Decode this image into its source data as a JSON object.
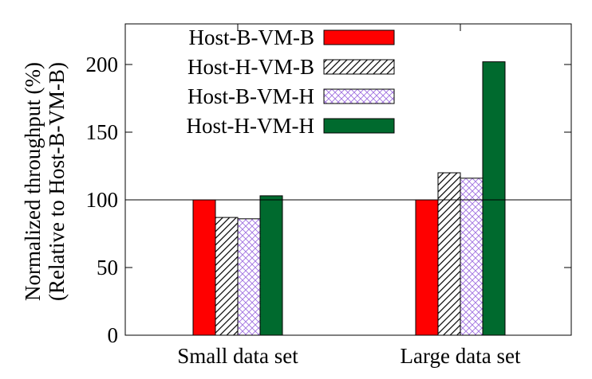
{
  "chart_data": {
    "type": "bar",
    "ylabel_lines": [
      "Normalized throughput (%)",
      "(Relative to Host-B-VM-B)"
    ],
    "categories": [
      "Small data set",
      "Large data set"
    ],
    "ylim": [
      0,
      230
    ],
    "yticks": [
      0,
      50,
      100,
      150,
      200
    ],
    "reference_line": 100,
    "grid": false,
    "legend_position": "top-left",
    "series": [
      {
        "name": "Host-B-VM-B",
        "values": [
          100,
          100
        ],
        "color": "#ff0000",
        "pattern": "solid"
      },
      {
        "name": "Host-H-VM-B",
        "values": [
          87,
          120
        ],
        "color": "#000000",
        "pattern": "diagonal-hatch"
      },
      {
        "name": "Host-B-VM-H",
        "values": [
          86,
          116
        ],
        "color": "#a070e0",
        "pattern": "crosshatch"
      },
      {
        "name": "Host-H-VM-H",
        "values": [
          103,
          202
        ],
        "color": "#006a2e",
        "pattern": "solid"
      }
    ]
  }
}
